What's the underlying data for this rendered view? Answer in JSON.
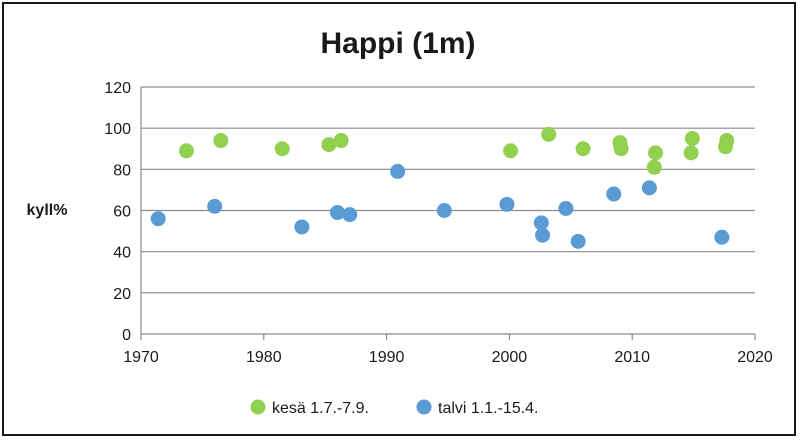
{
  "chart_data": {
    "type": "scatter",
    "title": "Happi (1m)",
    "ylabel": "kyll%",
    "xlabel": "",
    "xlim": [
      1970,
      2020
    ],
    "ylim": [
      0,
      120
    ],
    "x_ticks": [
      "1970",
      "1980",
      "1990",
      "2000",
      "2010",
      "2020"
    ],
    "y_ticks": [
      "0",
      "20",
      "40",
      "60",
      "80",
      "100",
      "120"
    ],
    "grid": "horizontal",
    "legend_position": "bottom",
    "series": [
      {
        "name": "kesä 1.7.-7.9.",
        "color": "#92d050",
        "x": [
          1973.7,
          1976.5,
          1981.5,
          1985.3,
          1986.3,
          2000.1,
          2003.2,
          2006.0,
          2009.0,
          2009.1,
          2011.9,
          2011.8,
          2014.9,
          2014.8,
          2017.7,
          2017.6
        ],
        "y": [
          89,
          94,
          90,
          92,
          94,
          89,
          97,
          90,
          93,
          90,
          88,
          81,
          95,
          88,
          94,
          91
        ]
      },
      {
        "name": "talvi 1.1.-15.4.",
        "color": "#5b9bd5",
        "x": [
          1971.4,
          1976.0,
          1983.1,
          1986.0,
          1987.0,
          1990.9,
          1994.7,
          1999.8,
          2002.6,
          2002.7,
          2004.6,
          2005.6,
          2008.5,
          2011.4,
          2017.3
        ],
        "y": [
          56,
          62,
          52,
          59,
          58,
          79,
          60,
          63,
          54,
          48,
          61,
          45,
          68,
          71,
          47
        ]
      }
    ]
  }
}
